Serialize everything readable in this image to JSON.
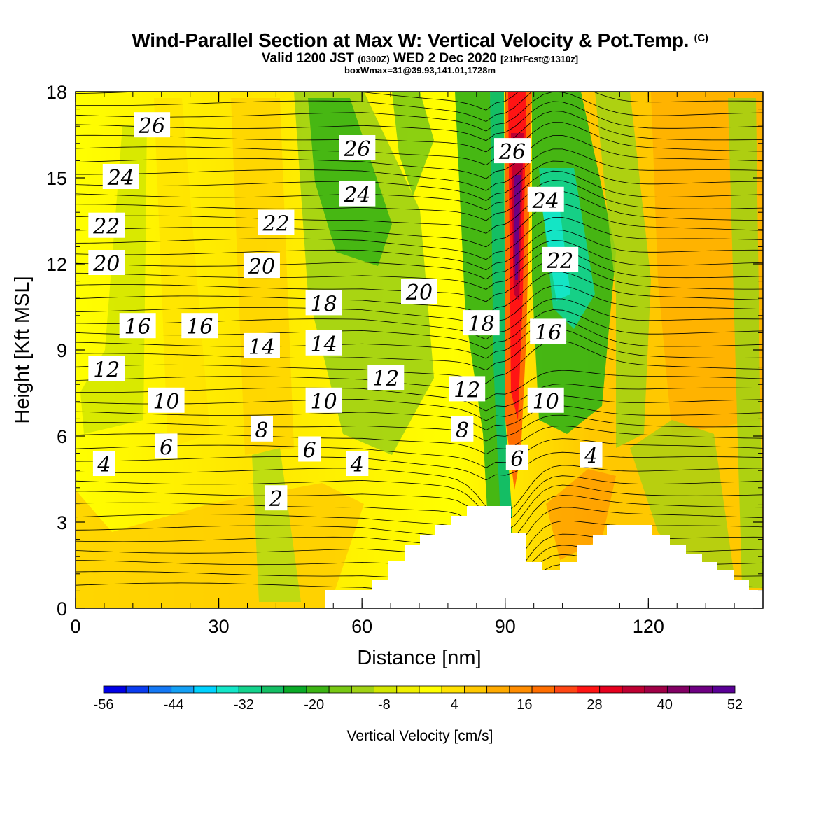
{
  "header": {
    "title": "Wind-Parallel Section at Max W: Vertical Velocity & Pot.Temp.",
    "title_tag": "(C)",
    "valid_prefix": "Valid 1200 JST",
    "valid_z": "(0300Z)",
    "valid_date": "WED 2 Dec 2020",
    "valid_fcst": "[21hrFcst@1310z]",
    "boxmax": "boxWmax=31@39.93,141.01,1728m"
  },
  "chart_data": {
    "type": "heatmap",
    "xlabel": "Distance [nm]",
    "ylabel": "Height [Kft MSL]",
    "xlim": [
      0,
      144
    ],
    "ylim": [
      0,
      18
    ],
    "x_ticks": [
      "0",
      "30",
      "60",
      "90",
      "120"
    ],
    "y_ticks": [
      "0",
      "3",
      "6",
      "9",
      "12",
      "15",
      "18"
    ],
    "colorbar": {
      "label": "Vertical Velocity [cm/s]",
      "tick_labels": [
        "-56",
        "-44",
        "-32",
        "-20",
        "-8",
        "4",
        "16",
        "28",
        "40",
        "52"
      ],
      "colors": [
        "#0000e6",
        "#0a3cf0",
        "#1478f5",
        "#14a0f5",
        "#00d2ff",
        "#14e6c8",
        "#14d28c",
        "#14be64",
        "#0aaa28",
        "#3cb414",
        "#78c814",
        "#a0d214",
        "#d2e600",
        "#f0f000",
        "#ffff00",
        "#ffe100",
        "#ffc800",
        "#ffaa00",
        "#ff8c00",
        "#ff6e00",
        "#ff4614",
        "#ff1414",
        "#e6001e",
        "#be0032",
        "#a00046",
        "#820064",
        "#6e0082",
        "#5a0096"
      ]
    },
    "theta_contour_labels": [
      {
        "text": "26",
        "x": 16,
        "y": 16.8
      },
      {
        "text": "24",
        "x": 9.5,
        "y": 15.0
      },
      {
        "text": "22",
        "x": 6.5,
        "y": 13.3
      },
      {
        "text": "20",
        "x": 6.5,
        "y": 12.0
      },
      {
        "text": "16",
        "x": 13,
        "y": 9.8
      },
      {
        "text": "16",
        "x": 26,
        "y": 9.8
      },
      {
        "text": "12",
        "x": 6.5,
        "y": 8.3
      },
      {
        "text": "10",
        "x": 19,
        "y": 7.2
      },
      {
        "text": "4",
        "x": 6,
        "y": 5.0
      },
      {
        "text": "6",
        "x": 19,
        "y": 5.6
      },
      {
        "text": "26",
        "x": 59,
        "y": 16.0
      },
      {
        "text": "24",
        "x": 59,
        "y": 14.4
      },
      {
        "text": "22",
        "x": 42,
        "y": 13.4
      },
      {
        "text": "20",
        "x": 39,
        "y": 11.9
      },
      {
        "text": "18",
        "x": 52,
        "y": 10.6
      },
      {
        "text": "14",
        "x": 39,
        "y": 9.1
      },
      {
        "text": "14",
        "x": 52,
        "y": 9.2
      },
      {
        "text": "10",
        "x": 52,
        "y": 7.2
      },
      {
        "text": "8",
        "x": 39,
        "y": 6.2
      },
      {
        "text": "6",
        "x": 49,
        "y": 5.5
      },
      {
        "text": "4",
        "x": 59,
        "y": 5.0
      },
      {
        "text": "2",
        "x": 42,
        "y": 3.8
      },
      {
        "text": "20",
        "x": 72,
        "y": 11.0
      },
      {
        "text": "12",
        "x": 65,
        "y": 8.0
      },
      {
        "text": "18",
        "x": 85,
        "y": 9.9
      },
      {
        "text": "12",
        "x": 82,
        "y": 7.6
      },
      {
        "text": "8",
        "x": 81,
        "y": 6.2
      },
      {
        "text": "6",
        "x": 92.5,
        "y": 5.2
      },
      {
        "text": "26",
        "x": 91.5,
        "y": 15.9
      },
      {
        "text": "24",
        "x": 98.5,
        "y": 14.2
      },
      {
        "text": "22",
        "x": 101.5,
        "y": 12.1
      },
      {
        "text": "16",
        "x": 99,
        "y": 9.6
      },
      {
        "text": "10",
        "x": 98.5,
        "y": 7.2
      },
      {
        "text": "4",
        "x": 108,
        "y": 5.3
      }
    ]
  }
}
